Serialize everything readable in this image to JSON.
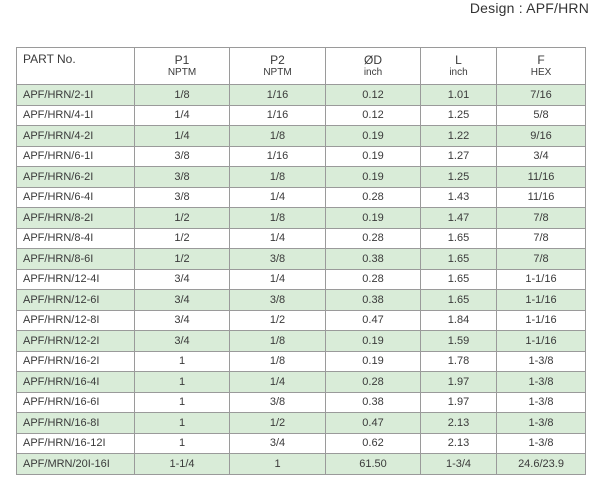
{
  "design_title": "Design : APF/HRN",
  "columns": [
    {
      "label": "PART No.",
      "sub": ""
    },
    {
      "label": "P1",
      "sub": "NPTM"
    },
    {
      "label": "P2",
      "sub": "NPTM"
    },
    {
      "label": "ØD",
      "sub": "inch"
    },
    {
      "label": "L",
      "sub": "inch"
    },
    {
      "label": "F",
      "sub": "HEX"
    }
  ],
  "rows": [
    [
      "APF/HRN/2-1I",
      "1/8",
      "1/16",
      "0.12",
      "1.01",
      "7/16"
    ],
    [
      "APF/HRN/4-1I",
      "1/4",
      "1/16",
      "0.12",
      "1.25",
      "5/8"
    ],
    [
      "APF/HRN/4-2I",
      "1/4",
      "1/8",
      "0.19",
      "1.22",
      "9/16"
    ],
    [
      "APF/HRN/6-1I",
      "3/8",
      "1/16",
      "0.19",
      "1.27",
      "3/4"
    ],
    [
      "APF/HRN/6-2I",
      "3/8",
      "1/8",
      "0.19",
      "1.25",
      "11/16"
    ],
    [
      "APF/HRN/6-4I",
      "3/8",
      "1/4",
      "0.28",
      "1.43",
      "11/16"
    ],
    [
      "APF/HRN/8-2I",
      "1/2",
      "1/8",
      "0.19",
      "1.47",
      "7/8"
    ],
    [
      "APF/HRN/8-4I",
      "1/2",
      "1/4",
      "0.28",
      "1.65",
      "7/8"
    ],
    [
      "APF/HRN/8-6I",
      "1/2",
      "3/8",
      "0.38",
      "1.65",
      "7/8"
    ],
    [
      "APF/HRN/12-4I",
      "3/4",
      "1/4",
      "0.28",
      "1.65",
      "1-1/16"
    ],
    [
      "APF/HRN/12-6I",
      "3/4",
      "3/8",
      "0.38",
      "1.65",
      "1-1/16"
    ],
    [
      "APF/HRN/12-8I",
      "3/4",
      "1/2",
      "0.47",
      "1.84",
      "1-1/16"
    ],
    [
      "APF/HRN/12-2I",
      "3/4",
      "1/8",
      "0.19",
      "1.59",
      "1-1/16"
    ],
    [
      "APF/HRN/16-2I",
      "1",
      "1/8",
      "0.19",
      "1.78",
      "1-3/8"
    ],
    [
      "APF/HRN/16-4I",
      "1",
      "1/4",
      "0.28",
      "1.97",
      "1-3/8"
    ],
    [
      "APF/HRN/16-6I",
      "1",
      "3/8",
      "0.38",
      "1.97",
      "1-3/8"
    ],
    [
      "APF/HRN/16-8I",
      "1",
      "1/2",
      "0.47",
      "2.13",
      "1-3/8"
    ],
    [
      "APF/HRN/16-12I",
      "1",
      "3/4",
      "0.62",
      "2.13",
      "1-3/8"
    ],
    [
      "APF/MRN/20I-16I",
      "1-1/4",
      "1",
      "61.50",
      "1-3/4",
      "24.6/23.9"
    ]
  ],
  "colors": {
    "shade_row": "#d9ecd8",
    "border": "#9a9a9a"
  }
}
